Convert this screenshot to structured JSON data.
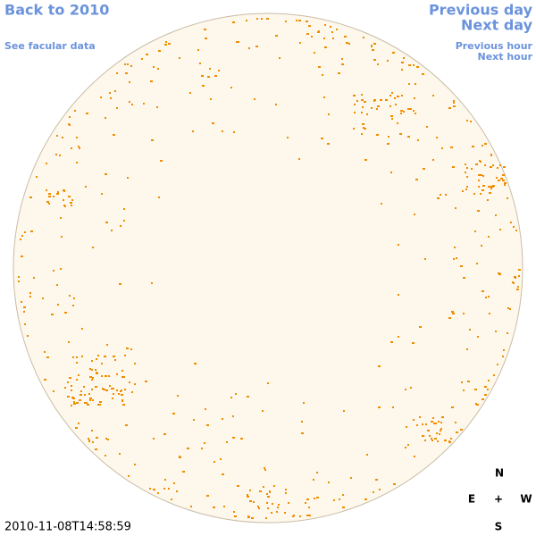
{
  "links": {
    "back": "Back to 2010",
    "facular": "See facular data",
    "previous_day": "Previous day",
    "next_day": "Next day",
    "previous_hour": "Previous hour",
    "next_hour": "Next hour"
  },
  "timestamp": "2010-11-08T14:58:59",
  "compass": {
    "north": "N",
    "east": "E",
    "center": "+",
    "west": "W",
    "south": "S"
  }
}
